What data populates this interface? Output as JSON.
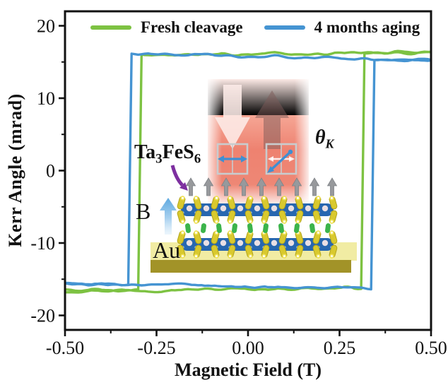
{
  "chart_data": {
    "type": "line",
    "title": "",
    "xlabel": "Magnetic Field (T)",
    "ylabel": "Kerr Angle (mrad)",
    "xlim": [
      -0.5,
      0.5
    ],
    "ylim": [
      -22,
      22
    ],
    "x_ticks": [
      -0.5,
      -0.25,
      0.0,
      0.25,
      0.5
    ],
    "x_tick_labels": [
      "-0.50",
      "-0.25",
      "0.00",
      "0.25",
      "0.50"
    ],
    "x_minor_ticks": [
      -0.375,
      -0.125,
      0.125,
      0.375
    ],
    "y_ticks": [
      -20,
      -10,
      0,
      10,
      20
    ],
    "y_tick_labels": [
      "-20",
      "-10",
      "0",
      "10",
      "20"
    ],
    "y_minor_ticks": [
      -15,
      -5,
      5,
      15
    ],
    "grid": false,
    "legend_position": "top-inside",
    "loop_shape": "square hysteresis",
    "series": [
      {
        "name": "Fresh cleavage",
        "color": "#7dc242",
        "switch_up_T": 0.31,
        "switch_down_T": -0.3,
        "top_branch_mrad": [
          15.8,
          16.3
        ],
        "bottom_branch_mrad": [
          -16.6,
          -16.1
        ]
      },
      {
        "name": "4 months aging",
        "color": "#4594d2",
        "switch_up_T": 0.34,
        "switch_down_T": -0.32,
        "top_branch_mrad": [
          16.4,
          15.2
        ],
        "bottom_branch_mrad": [
          -15.6,
          -16.4
        ]
      }
    ]
  },
  "legend": {
    "items": [
      {
        "label": "Fresh cleavage",
        "color": "#7dc242"
      },
      {
        "label": "4 months aging",
        "color": "#4594d2"
      }
    ]
  },
  "inset": {
    "material_label": {
      "prefix": "Ta",
      "sub_a": "3",
      "mid": "FeS",
      "sub_b": "6"
    },
    "kerr_angle_symbol": "θ",
    "kerr_angle_sub": "K",
    "b_field_label": "B",
    "substrate_label": "Au",
    "colors": {
      "beam_red": "#ee8270",
      "probe_down_arrow": "#fdece8",
      "reflect_up_arrow": "#7c5a57",
      "polarization_blue": "#3f8fd2",
      "pointer_purple": "#7d2fa0",
      "magnetization_gray": "#97999c",
      "field_arrow_blue": "#6fb0e2",
      "substrate_pale": "#f1eca3",
      "substrate_gold": "#a29328",
      "atom_yellow": "#d9c92e",
      "atom_blue": "#2767b0",
      "atom_green": "#3cb44b"
    }
  }
}
